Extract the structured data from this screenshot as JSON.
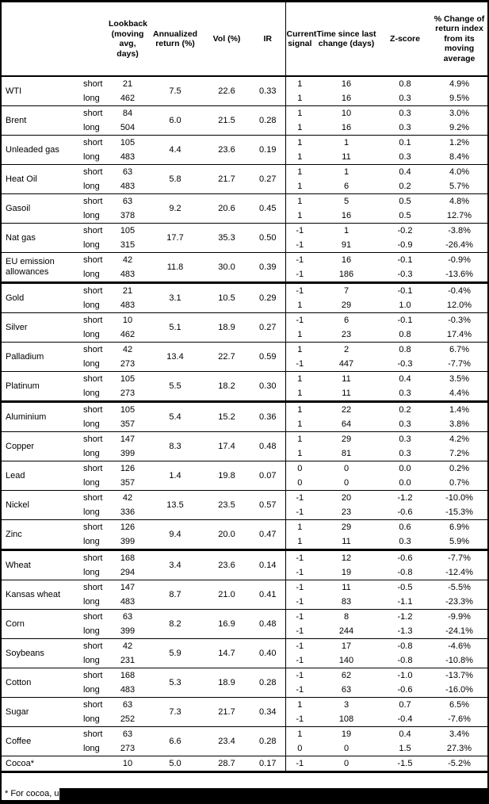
{
  "header": {
    "lookback": "Lookback (moving avg, days)",
    "annualized": "Annualized return (%)",
    "vol": "Vol (%)",
    "ir": "IR",
    "signal": "Current signal",
    "time_since": "Time since last change (days)",
    "zscore": "Z-score",
    "pct_change": "% Change of return index from its moving average"
  },
  "footnote": "* For cocoa, uses c",
  "table": {
    "commodities": [
      {
        "name": "WTI",
        "section_start": false,
        "annualized": "7.5",
        "vol": "22.6",
        "ir": "0.33",
        "rows": [
          {
            "horizon": "short",
            "lookback": "21",
            "signal": "1",
            "time": "16",
            "zscore": "0.8",
            "pct_change": "4.9%"
          },
          {
            "horizon": "long",
            "lookback": "462",
            "signal": "1",
            "time": "16",
            "zscore": "0.3",
            "pct_change": "9.5%"
          }
        ]
      },
      {
        "name": "Brent",
        "section_start": false,
        "annualized": "6.0",
        "vol": "21.5",
        "ir": "0.28",
        "rows": [
          {
            "horizon": "short",
            "lookback": "84",
            "signal": "1",
            "time": "10",
            "zscore": "0.3",
            "pct_change": "3.0%"
          },
          {
            "horizon": "long",
            "lookback": "504",
            "signal": "1",
            "time": "16",
            "zscore": "0.3",
            "pct_change": "9.2%"
          }
        ]
      },
      {
        "name": "Unleaded gas",
        "section_start": false,
        "annualized": "4.4",
        "vol": "23.6",
        "ir": "0.19",
        "rows": [
          {
            "horizon": "short",
            "lookback": "105",
            "signal": "1",
            "time": "1",
            "zscore": "0.1",
            "pct_change": "1.2%"
          },
          {
            "horizon": "long",
            "lookback": "483",
            "signal": "1",
            "time": "11",
            "zscore": "0.3",
            "pct_change": "8.4%"
          }
        ]
      },
      {
        "name": "Heat Oil",
        "section_start": false,
        "annualized": "5.8",
        "vol": "21.7",
        "ir": "0.27",
        "rows": [
          {
            "horizon": "short",
            "lookback": "63",
            "signal": "1",
            "time": "1",
            "zscore": "0.4",
            "pct_change": "4.0%"
          },
          {
            "horizon": "long",
            "lookback": "483",
            "signal": "1",
            "time": "6",
            "zscore": "0.2",
            "pct_change": "5.7%"
          }
        ]
      },
      {
        "name": "Gasoil",
        "section_start": false,
        "annualized": "9.2",
        "vol": "20.6",
        "ir": "0.45",
        "rows": [
          {
            "horizon": "short",
            "lookback": "63",
            "signal": "1",
            "time": "5",
            "zscore": "0.5",
            "pct_change": "4.8%"
          },
          {
            "horizon": "long",
            "lookback": "378",
            "signal": "1",
            "time": "16",
            "zscore": "0.5",
            "pct_change": "12.7%"
          }
        ]
      },
      {
        "name": "Nat gas",
        "section_start": false,
        "annualized": "17.7",
        "vol": "35.3",
        "ir": "0.50",
        "rows": [
          {
            "horizon": "short",
            "lookback": "105",
            "signal": "-1",
            "time": "1",
            "zscore": "-0.2",
            "pct_change": "-3.8%"
          },
          {
            "horizon": "long",
            "lookback": "315",
            "signal": "-1",
            "time": "91",
            "zscore": "-0.9",
            "pct_change": "-26.4%"
          }
        ]
      },
      {
        "name": "EU emission allowances",
        "section_start": false,
        "annualized": "11.8",
        "vol": "30.0",
        "ir": "0.39",
        "rows": [
          {
            "horizon": "short",
            "lookback": "42",
            "signal": "-1",
            "time": "16",
            "zscore": "-0.1",
            "pct_change": "-0.9%"
          },
          {
            "horizon": "long",
            "lookback": "483",
            "signal": "-1",
            "time": "186",
            "zscore": "-0.3",
            "pct_change": "-13.6%"
          }
        ]
      },
      {
        "name": "Gold",
        "section_start": true,
        "annualized": "3.1",
        "vol": "10.5",
        "ir": "0.29",
        "rows": [
          {
            "horizon": "short",
            "lookback": "21",
            "signal": "-1",
            "time": "7",
            "zscore": "-0.1",
            "pct_change": "-0.4%"
          },
          {
            "horizon": "long",
            "lookback": "483",
            "signal": "1",
            "time": "29",
            "zscore": "1.0",
            "pct_change": "12.0%"
          }
        ]
      },
      {
        "name": "Silver",
        "section_start": false,
        "annualized": "5.1",
        "vol": "18.9",
        "ir": "0.27",
        "rows": [
          {
            "horizon": "short",
            "lookback": "10",
            "signal": "-1",
            "time": "6",
            "zscore": "-0.1",
            "pct_change": "-0.3%"
          },
          {
            "horizon": "long",
            "lookback": "462",
            "signal": "1",
            "time": "23",
            "zscore": "0.8",
            "pct_change": "17.4%"
          }
        ]
      },
      {
        "name": "Palladium",
        "section_start": false,
        "annualized": "13.4",
        "vol": "22.7",
        "ir": "0.59",
        "rows": [
          {
            "horizon": "short",
            "lookback": "42",
            "signal": "1",
            "time": "2",
            "zscore": "0.8",
            "pct_change": "6.7%"
          },
          {
            "horizon": "long",
            "lookback": "273",
            "signal": "-1",
            "time": "447",
            "zscore": "-0.3",
            "pct_change": "-7.7%"
          }
        ]
      },
      {
        "name": "Platinum",
        "section_start": false,
        "annualized": "5.5",
        "vol": "18.2",
        "ir": "0.30",
        "rows": [
          {
            "horizon": "short",
            "lookback": "105",
            "signal": "1",
            "time": "11",
            "zscore": "0.4",
            "pct_change": "3.5%"
          },
          {
            "horizon": "long",
            "lookback": "273",
            "signal": "1",
            "time": "11",
            "zscore": "0.3",
            "pct_change": "4.4%"
          }
        ]
      },
      {
        "name": "Aluminium",
        "section_start": true,
        "annualized": "5.4",
        "vol": "15.2",
        "ir": "0.36",
        "rows": [
          {
            "horizon": "short",
            "lookback": "105",
            "signal": "1",
            "time": "22",
            "zscore": "0.2",
            "pct_change": "1.4%"
          },
          {
            "horizon": "long",
            "lookback": "357",
            "signal": "1",
            "time": "64",
            "zscore": "0.3",
            "pct_change": "3.8%"
          }
        ]
      },
      {
        "name": "Copper",
        "section_start": false,
        "annualized": "8.3",
        "vol": "17.4",
        "ir": "0.48",
        "rows": [
          {
            "horizon": "short",
            "lookback": "147",
            "signal": "1",
            "time": "29",
            "zscore": "0.3",
            "pct_change": "4.2%"
          },
          {
            "horizon": "long",
            "lookback": "399",
            "signal": "1",
            "time": "81",
            "zscore": "0.3",
            "pct_change": "7.2%"
          }
        ]
      },
      {
        "name": "Lead",
        "section_start": false,
        "annualized": "1.4",
        "vol": "19.8",
        "ir": "0.07",
        "rows": [
          {
            "horizon": "short",
            "lookback": "126",
            "signal": "0",
            "time": "0",
            "zscore": "0.0",
            "pct_change": "0.2%"
          },
          {
            "horizon": "long",
            "lookback": "357",
            "signal": "0",
            "time": "0",
            "zscore": "0.0",
            "pct_change": "0.7%"
          }
        ]
      },
      {
        "name": "Nickel",
        "section_start": false,
        "annualized": "13.5",
        "vol": "23.5",
        "ir": "0.57",
        "rows": [
          {
            "horizon": "short",
            "lookback": "42",
            "signal": "-1",
            "time": "20",
            "zscore": "-1.2",
            "pct_change": "-10.0%"
          },
          {
            "horizon": "long",
            "lookback": "336",
            "signal": "-1",
            "time": "23",
            "zscore": "-0.6",
            "pct_change": "-15.3%"
          }
        ]
      },
      {
        "name": "Zinc",
        "section_start": false,
        "annualized": "9.4",
        "vol": "20.0",
        "ir": "0.47",
        "rows": [
          {
            "horizon": "short",
            "lookback": "126",
            "signal": "1",
            "time": "29",
            "zscore": "0.6",
            "pct_change": "6.9%"
          },
          {
            "horizon": "long",
            "lookback": "399",
            "signal": "1",
            "time": "11",
            "zscore": "0.3",
            "pct_change": "5.9%"
          }
        ]
      },
      {
        "name": "Wheat",
        "section_start": true,
        "annualized": "3.4",
        "vol": "23.6",
        "ir": "0.14",
        "rows": [
          {
            "horizon": "short",
            "lookback": "168",
            "signal": "-1",
            "time": "12",
            "zscore": "-0.6",
            "pct_change": "-7.7%"
          },
          {
            "horizon": "long",
            "lookback": "294",
            "signal": "-1",
            "time": "19",
            "zscore": "-0.8",
            "pct_change": "-12.4%"
          }
        ]
      },
      {
        "name": "Kansas wheat",
        "section_start": false,
        "annualized": "8.7",
        "vol": "21.0",
        "ir": "0.41",
        "rows": [
          {
            "horizon": "short",
            "lookback": "147",
            "signal": "-1",
            "time": "11",
            "zscore": "-0.5",
            "pct_change": "-5.5%"
          },
          {
            "horizon": "long",
            "lookback": "483",
            "signal": "-1",
            "time": "83",
            "zscore": "-1.1",
            "pct_change": "-23.3%"
          }
        ]
      },
      {
        "name": "Corn",
        "section_start": false,
        "annualized": "8.2",
        "vol": "16.9",
        "ir": "0.48",
        "rows": [
          {
            "horizon": "short",
            "lookback": "63",
            "signal": "-1",
            "time": "8",
            "zscore": "-1.2",
            "pct_change": "-9.9%"
          },
          {
            "horizon": "long",
            "lookback": "399",
            "signal": "-1",
            "time": "244",
            "zscore": "-1.3",
            "pct_change": "-24.1%"
          }
        ]
      },
      {
        "name": "Soybeans",
        "section_start": false,
        "annualized": "5.9",
        "vol": "14.7",
        "ir": "0.40",
        "rows": [
          {
            "horizon": "short",
            "lookback": "42",
            "signal": "-1",
            "time": "17",
            "zscore": "-0.8",
            "pct_change": "-4.6%"
          },
          {
            "horizon": "long",
            "lookback": "231",
            "signal": "-1",
            "time": "140",
            "zscore": "-0.8",
            "pct_change": "-10.8%"
          }
        ]
      },
      {
        "name": "Cotton",
        "section_start": false,
        "annualized": "5.3",
        "vol": "18.9",
        "ir": "0.28",
        "rows": [
          {
            "horizon": "short",
            "lookback": "168",
            "signal": "-1",
            "time": "62",
            "zscore": "-1.0",
            "pct_change": "-13.7%"
          },
          {
            "horizon": "long",
            "lookback": "483",
            "signal": "-1",
            "time": "63",
            "zscore": "-0.6",
            "pct_change": "-16.0%"
          }
        ]
      },
      {
        "name": "Sugar",
        "section_start": false,
        "annualized": "7.3",
        "vol": "21.7",
        "ir": "0.34",
        "rows": [
          {
            "horizon": "short",
            "lookback": "63",
            "signal": "1",
            "time": "3",
            "zscore": "0.7",
            "pct_change": "6.5%"
          },
          {
            "horizon": "long",
            "lookback": "252",
            "signal": "-1",
            "time": "108",
            "zscore": "-0.4",
            "pct_change": "-7.6%"
          }
        ]
      },
      {
        "name": "Coffee",
        "section_start": false,
        "annualized": "6.6",
        "vol": "23.4",
        "ir": "0.28",
        "rows": [
          {
            "horizon": "short",
            "lookback": "63",
            "signal": "1",
            "time": "19",
            "zscore": "0.4",
            "pct_change": "3.4%"
          },
          {
            "horizon": "long",
            "lookback": "273",
            "signal": "0",
            "time": "0",
            "zscore": "1.5",
            "pct_change": "27.3%"
          }
        ]
      },
      {
        "name": "Cocoa*",
        "section_start": false,
        "annualized": "5.0",
        "vol": "28.7",
        "ir": "0.17",
        "rows": [
          {
            "horizon": "",
            "lookback": "10",
            "signal": "-1",
            "time": "0",
            "zscore": "-1.5",
            "pct_change": "-5.2%"
          }
        ]
      }
    ]
  }
}
